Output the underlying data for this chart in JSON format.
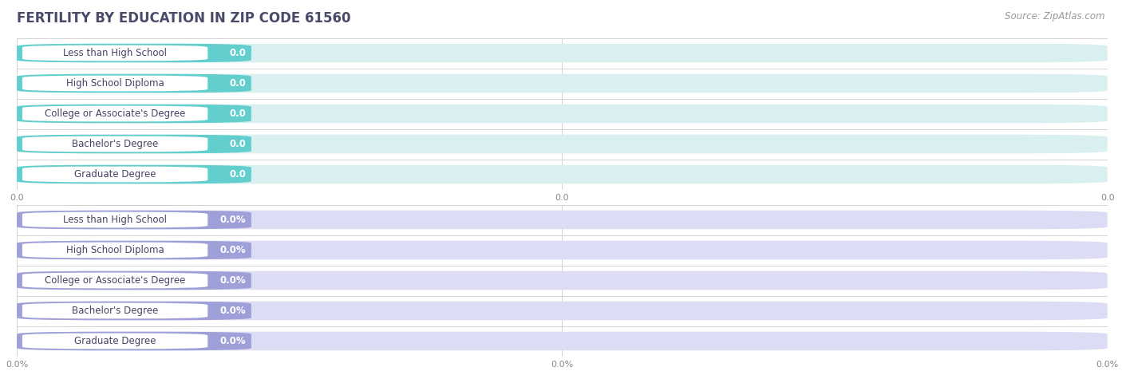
{
  "title": "FERTILITY BY EDUCATION IN ZIP CODE 61560",
  "source": "Source: ZipAtlas.com",
  "categories": [
    "Less than High School",
    "High School Diploma",
    "College or Associate's Degree",
    "Bachelor's Degree",
    "Graduate Degree"
  ],
  "top_values": [
    0.0,
    0.0,
    0.0,
    0.0,
    0.0
  ],
  "bottom_values": [
    0.0,
    0.0,
    0.0,
    0.0,
    0.0
  ],
  "top_color": "#62cece",
  "top_bg_color": "#daf0f0",
  "bottom_color": "#a0a0d8",
  "bottom_bg_color": "#dcdcf4",
  "fig_bg_color": "#ffffff",
  "row_bg_color": "#f5f5f5",
  "title_color": "#4a4a6a",
  "title_fontsize": 12,
  "label_fontsize": 8.5,
  "value_fontsize": 8.5,
  "source_fontsize": 8.5,
  "source_color": "#999999",
  "tick_fontsize": 8,
  "top_xtick_labels": [
    "0.0",
    "0.0",
    "0.0"
  ],
  "bottom_xtick_labels": [
    "0.0%",
    "0.0%",
    "0.0%"
  ],
  "divider_color": "#cccccc",
  "text_color": "#444466",
  "value_text_color": "#ffffff"
}
